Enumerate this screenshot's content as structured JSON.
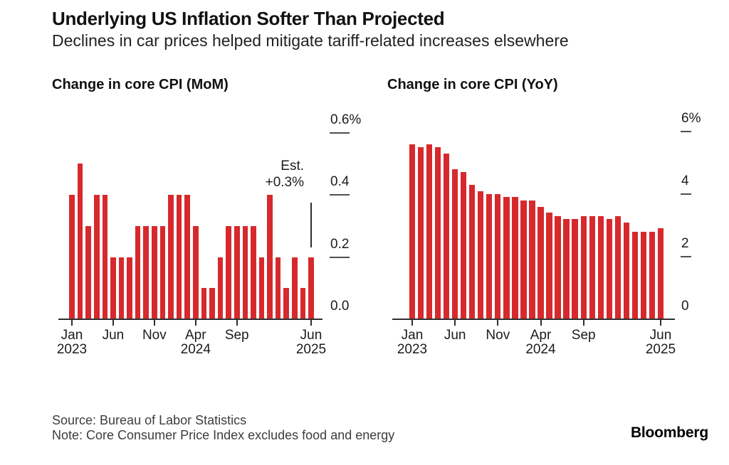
{
  "header": {
    "title": "Underlying US Inflation Softer Than Projected",
    "subtitle": "Declines in car prices helped mitigate tariff-related increases elsewhere"
  },
  "footer": {
    "source": "Source: Bureau of Labor Statistics",
    "note": "Note: Core Consumer Price Index excludes food and energy",
    "logo": "Bloomberg"
  },
  "colors": {
    "bar_red": "#d7292c",
    "axis": "#2f2f2f",
    "text": "#1c1c1c"
  },
  "chart_data": [
    {
      "type": "bar",
      "title": "Change in core CPI (MoM)",
      "unit": "percent",
      "x": [
        "Jan 2023",
        "Feb 2023",
        "Mar 2023",
        "Apr 2023",
        "May 2023",
        "Jun 2023",
        "Jul 2023",
        "Aug 2023",
        "Sep 2023",
        "Oct 2023",
        "Nov 2023",
        "Dec 2023",
        "Jan 2024",
        "Feb 2024",
        "Mar 2024",
        "Apr 2024",
        "May 2024",
        "Jun 2024",
        "Jul 2024",
        "Aug 2024",
        "Sep 2024",
        "Oct 2024",
        "Nov 2024",
        "Dec 2024",
        "Jan 2025",
        "Feb 2025",
        "Mar 2025",
        "Apr 2025",
        "May 2025",
        "Jun 2025"
      ],
      "values": [
        0.4,
        0.5,
        0.3,
        0.4,
        0.4,
        0.2,
        0.2,
        0.2,
        0.3,
        0.3,
        0.3,
        0.3,
        0.4,
        0.4,
        0.4,
        0.3,
        0.1,
        0.1,
        0.2,
        0.3,
        0.3,
        0.3,
        0.3,
        0.2,
        0.4,
        0.2,
        0.1,
        0.2,
        0.1,
        0.2
      ],
      "ylim": [
        0,
        0.6
      ],
      "grid": false,
      "yticks": [
        {
          "value": 0.6,
          "label": "0.6%"
        },
        {
          "value": 0.4,
          "label": "0.4"
        },
        {
          "value": 0.2,
          "label": "0.2"
        },
        {
          "value": 0.0,
          "label": "0.0"
        }
      ],
      "xticks": [
        {
          "index": 0,
          "label": [
            "Jan",
            "2023"
          ]
        },
        {
          "index": 5,
          "label": [
            "Jun"
          ]
        },
        {
          "index": 10,
          "label": [
            "Nov"
          ]
        },
        {
          "index": 15,
          "label": [
            "Apr",
            "2024"
          ]
        },
        {
          "index": 20,
          "label": [
            "Sep"
          ]
        },
        {
          "index": 29,
          "label": [
            "Jun",
            "2025"
          ]
        }
      ],
      "annotation": {
        "lines": [
          "Est.",
          "+0.3%"
        ],
        "estimate_value": 0.3,
        "marker": {
          "month_index": 29,
          "from_value": 0.23,
          "to_value": 0.375
        }
      }
    },
    {
      "type": "bar",
      "title": "Change in core CPI (YoY)",
      "unit": "percent",
      "x": [
        "Jan 2023",
        "Feb 2023",
        "Mar 2023",
        "Apr 2023",
        "May 2023",
        "Jun 2023",
        "Jul 2023",
        "Aug 2023",
        "Sep 2023",
        "Oct 2023",
        "Nov 2023",
        "Dec 2023",
        "Jan 2024",
        "Feb 2024",
        "Mar 2024",
        "Apr 2024",
        "May 2024",
        "Jun 2024",
        "Jul 2024",
        "Aug 2024",
        "Sep 2024",
        "Oct 2024",
        "Nov 2024",
        "Dec 2024",
        "Jan 2025",
        "Feb 2025",
        "Mar 2025",
        "Apr 2025",
        "May 2025",
        "Jun 2025"
      ],
      "values": [
        5.6,
        5.5,
        5.6,
        5.5,
        5.3,
        4.8,
        4.7,
        4.3,
        4.1,
        4.0,
        4.0,
        3.9,
        3.9,
        3.8,
        3.8,
        3.6,
        3.4,
        3.3,
        3.2,
        3.2,
        3.3,
        3.3,
        3.3,
        3.2,
        3.3,
        3.1,
        2.8,
        2.8,
        2.8,
        2.9
      ],
      "ylim": [
        0,
        6
      ],
      "grid": false,
      "yticks": [
        {
          "value": 6,
          "label": "6%"
        },
        {
          "value": 4,
          "label": "4"
        },
        {
          "value": 2,
          "label": "2"
        },
        {
          "value": 0,
          "label": "0"
        }
      ],
      "xticks": [
        {
          "index": 0,
          "label": [
            "Jan",
            "2023"
          ]
        },
        {
          "index": 5,
          "label": [
            "Jun"
          ]
        },
        {
          "index": 10,
          "label": [
            "Nov"
          ]
        },
        {
          "index": 15,
          "label": [
            "Apr",
            "2024"
          ]
        },
        {
          "index": 20,
          "label": [
            "Sep"
          ]
        },
        {
          "index": 29,
          "label": [
            "Jun",
            "2025"
          ]
        }
      ]
    }
  ]
}
